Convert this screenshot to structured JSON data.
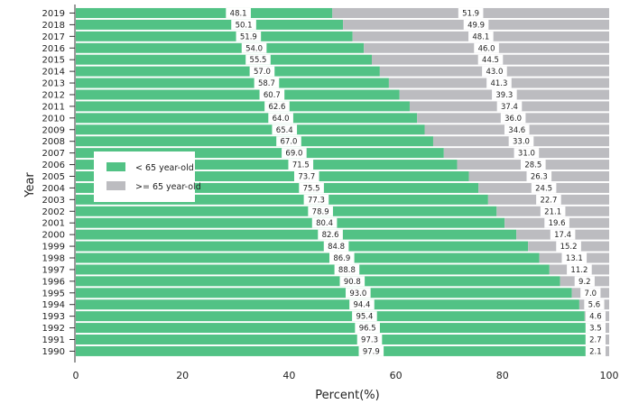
{
  "chart_data": {
    "type": "bar",
    "orientation": "horizontal",
    "stacked": true,
    "categories": [
      "2019",
      "2018",
      "2017",
      "2016",
      "2015",
      "2014",
      "2013",
      "2012",
      "2011",
      "2010",
      "2009",
      "2008",
      "2007",
      "2006",
      "2005",
      "2004",
      "2003",
      "2002",
      "2001",
      "2000",
      "1999",
      "1998",
      "1997",
      "1996",
      "1995",
      "1994",
      "1993",
      "1992",
      "1991",
      "1990"
    ],
    "series": [
      {
        "name": "< 65 year-old",
        "color": "#52c285",
        "values": [
          48.1,
          50.1,
          51.9,
          54.0,
          55.5,
          57.0,
          58.7,
          60.7,
          62.6,
          64.0,
          65.4,
          67.0,
          69.0,
          71.5,
          73.7,
          75.5,
          77.3,
          78.9,
          80.4,
          82.6,
          84.8,
          86.9,
          88.8,
          90.8,
          93.0,
          94.4,
          95.4,
          96.5,
          97.3,
          97.9
        ],
        "labels": [
          "48.1",
          "50.1",
          "51.9",
          "54.0",
          "55.5",
          "57.0",
          "58.7",
          "60.7",
          "62.6",
          "64.0",
          "65.4",
          "67.0",
          "69.0",
          "71.5",
          "73.7",
          "75.5",
          "77.3",
          "78.9",
          "80.4",
          "82.6",
          "84.8",
          "86.9",
          "88.8",
          "90.8",
          "93.0",
          "94.4",
          "95.4",
          "96.5",
          "97.3",
          "97.9"
        ]
      },
      {
        "name": ">= 65 year-old",
        "color": "#bcbcc0",
        "values": [
          51.9,
          49.9,
          48.1,
          46.0,
          44.5,
          43.0,
          41.3,
          39.3,
          37.4,
          36.0,
          34.6,
          33.0,
          31.0,
          28.5,
          26.3,
          24.5,
          22.7,
          21.1,
          19.6,
          17.4,
          15.2,
          13.1,
          11.2,
          9.2,
          7.0,
          5.6,
          4.6,
          3.5,
          2.7,
          2.1
        ],
        "labels": [
          "51.9",
          "49.9",
          "48.1",
          "46.0",
          "44.5",
          "43.0",
          "41.3",
          "39.3",
          "37.4",
          "36.0",
          "34.6",
          "33.0",
          "31.0",
          "28.5",
          "26.3",
          "24.5",
          "22.7",
          "21.1",
          "19.6",
          "17.4",
          "15.2",
          "13.1",
          "11.2",
          "9.2",
          "7.0",
          "5.6",
          "4.6",
          "3.5",
          "2.7",
          "2.1"
        ]
      }
    ],
    "xlabel": "Percent(%)",
    "ylabel": "Year",
    "xlim": [
      0,
      100
    ],
    "xticks": [
      "0",
      "20",
      "40",
      "60",
      "80",
      "100"
    ],
    "grid": false,
    "legend_position": "middle-left"
  }
}
